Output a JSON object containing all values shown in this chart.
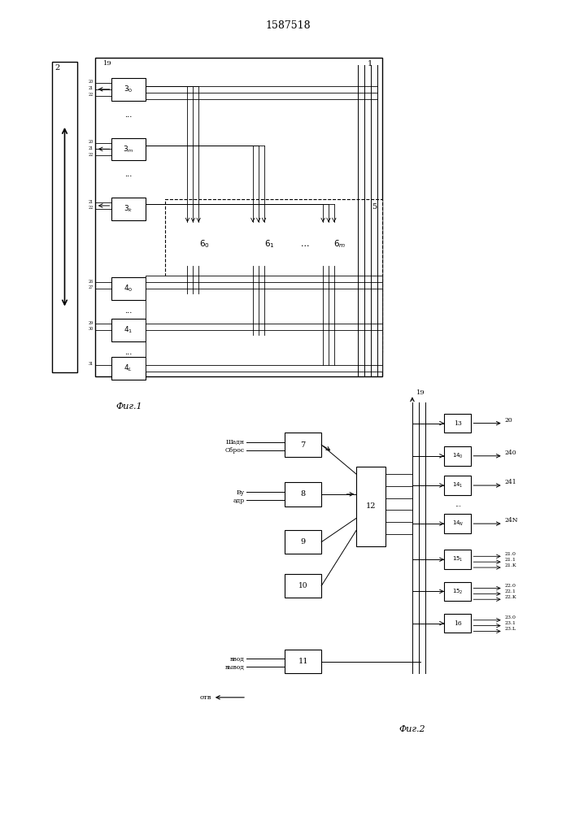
{
  "title": "1587518",
  "fig1_label": "Фиг.1",
  "fig2_label": "Фиг.2",
  "background": "#ffffff",
  "lc": "#000000"
}
